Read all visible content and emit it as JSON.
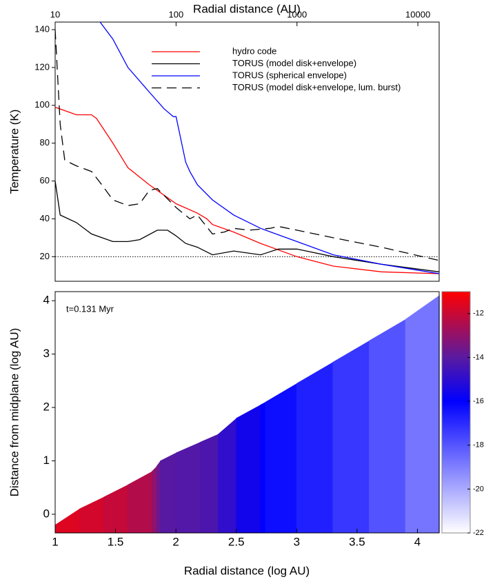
{
  "chart_data": [
    {
      "type": "line",
      "xlabel": "Radial distance (AU)",
      "ylabel": "Temperature (K)",
      "xscale": "log",
      "xlim": [
        10,
        15000
      ],
      "xticks": [
        10,
        100,
        1000,
        10000
      ],
      "ylim": [
        7,
        144
      ],
      "yticks": [
        20,
        40,
        60,
        80,
        100,
        120,
        140
      ],
      "hlines": [
        {
          "y": 20,
          "color": "#000000",
          "style": "dotted"
        }
      ],
      "series": [
        {
          "name": "hydro code",
          "color": "#ff0000",
          "style": "solid",
          "x": [
            10,
            15,
            20,
            22,
            30,
            40,
            60,
            100,
            150,
            180,
            200,
            300,
            500,
            1000,
            2000,
            5000,
            15000
          ],
          "values": [
            99,
            95,
            95,
            93,
            80,
            67,
            58,
            48,
            43,
            40,
            37,
            33,
            27,
            20,
            15,
            12,
            11
          ]
        },
        {
          "name": "TORUS (model disk+envelope)",
          "color": "#000000",
          "style": "solid",
          "x": [
            10,
            11,
            15,
            20,
            30,
            40,
            50,
            70,
            85,
            100,
            120,
            150,
            200,
            300,
            500,
            700,
            1000,
            2000,
            5000,
            15000
          ],
          "values": [
            60,
            42,
            38,
            32,
            28,
            28,
            29,
            34,
            34,
            31,
            27,
            25,
            21,
            23,
            21,
            24,
            24,
            20,
            16,
            12
          ]
        },
        {
          "name": "TORUS (spherical envelope)",
          "color": "#0000ff",
          "style": "solid",
          "x": [
            20,
            30,
            40,
            60,
            80,
            95,
            100,
            120,
            130,
            150,
            200,
            300,
            500,
            1000,
            2000,
            5000,
            15000
          ],
          "values": [
            150,
            135,
            120,
            107,
            98,
            94,
            94,
            70,
            65,
            58,
            50,
            42,
            35,
            28,
            21,
            16,
            11
          ]
        },
        {
          "name": "TORUS (model disk+envelope, lum. burst)",
          "color": "#000000",
          "style": "dashed",
          "x": [
            10,
            11,
            12,
            15,
            20,
            25,
            30,
            40,
            50,
            60,
            70,
            100,
            130,
            150,
            200,
            250,
            300,
            400,
            600,
            700,
            1000,
            2000,
            5000,
            15000
          ],
          "values": [
            140,
            90,
            71,
            68,
            65,
            57,
            50,
            47,
            48,
            55,
            56,
            46,
            40,
            42,
            32,
            33,
            35,
            34,
            35,
            36,
            34,
            30,
            25,
            18
          ]
        }
      ]
    },
    {
      "type": "colorarea",
      "xlabel": "Radial distance (log AU)",
      "ylabel": "Distance from midplane (log AU)",
      "annotation": "t=0.131 Myr",
      "xlim": [
        1,
        4.18
      ],
      "xticks": [
        1,
        1.5,
        2,
        2.5,
        3,
        3.5,
        4
      ],
      "ylim": [
        -0.35,
        4.17
      ],
      "yticks": [
        0,
        1,
        2,
        3,
        4
      ],
      "clim": [
        -22,
        -11
      ],
      "cticks": [
        -12,
        -14,
        -16,
        -18,
        -20,
        -22
      ],
      "colormap": [
        [
          -22,
          "#ffffff"
        ],
        [
          -16,
          "#0000ff"
        ],
        [
          -14,
          "#5a1aa0"
        ],
        [
          -11,
          "#ff0000"
        ]
      ],
      "x": [
        1,
        1.2,
        1.4,
        1.6,
        1.8,
        1.84,
        1.87,
        2,
        2.2,
        2.35,
        2.5,
        2.7,
        2.74,
        3,
        3.3,
        3.6,
        3.9,
        4.18
      ],
      "values": [
        -0.2,
        0.1,
        0.32,
        0.55,
        0.8,
        0.9,
        1.0,
        1.15,
        1.35,
        1.5,
        1.8,
        2.05,
        2.1,
        2.45,
        2.85,
        3.25,
        3.65,
        4.1
      ],
      "color_values": [
        -11.5,
        -11.7,
        -11.9,
        -12.2,
        -12.6,
        -13.4,
        -14.0,
        -14.1,
        -14.2,
        -14.4,
        -15.4,
        -15.8,
        -16.1,
        -16.5,
        -17.0,
        -17.6,
        -18.3,
        -19.2
      ]
    }
  ]
}
